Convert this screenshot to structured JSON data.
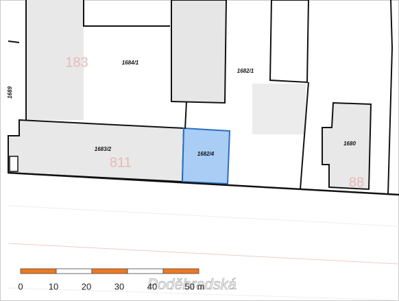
{
  "parcels": [
    "1684/1",
    "1682/1",
    "1683/2",
    "1682/4",
    "1680",
    "1689"
  ],
  "house_numbers": [
    "183",
    "811",
    "88"
  ],
  "street": "Poděbradská",
  "scale_bar": {
    "labels": [
      "0",
      "10",
      "20",
      "30",
      "40",
      "50 m"
    ]
  }
}
